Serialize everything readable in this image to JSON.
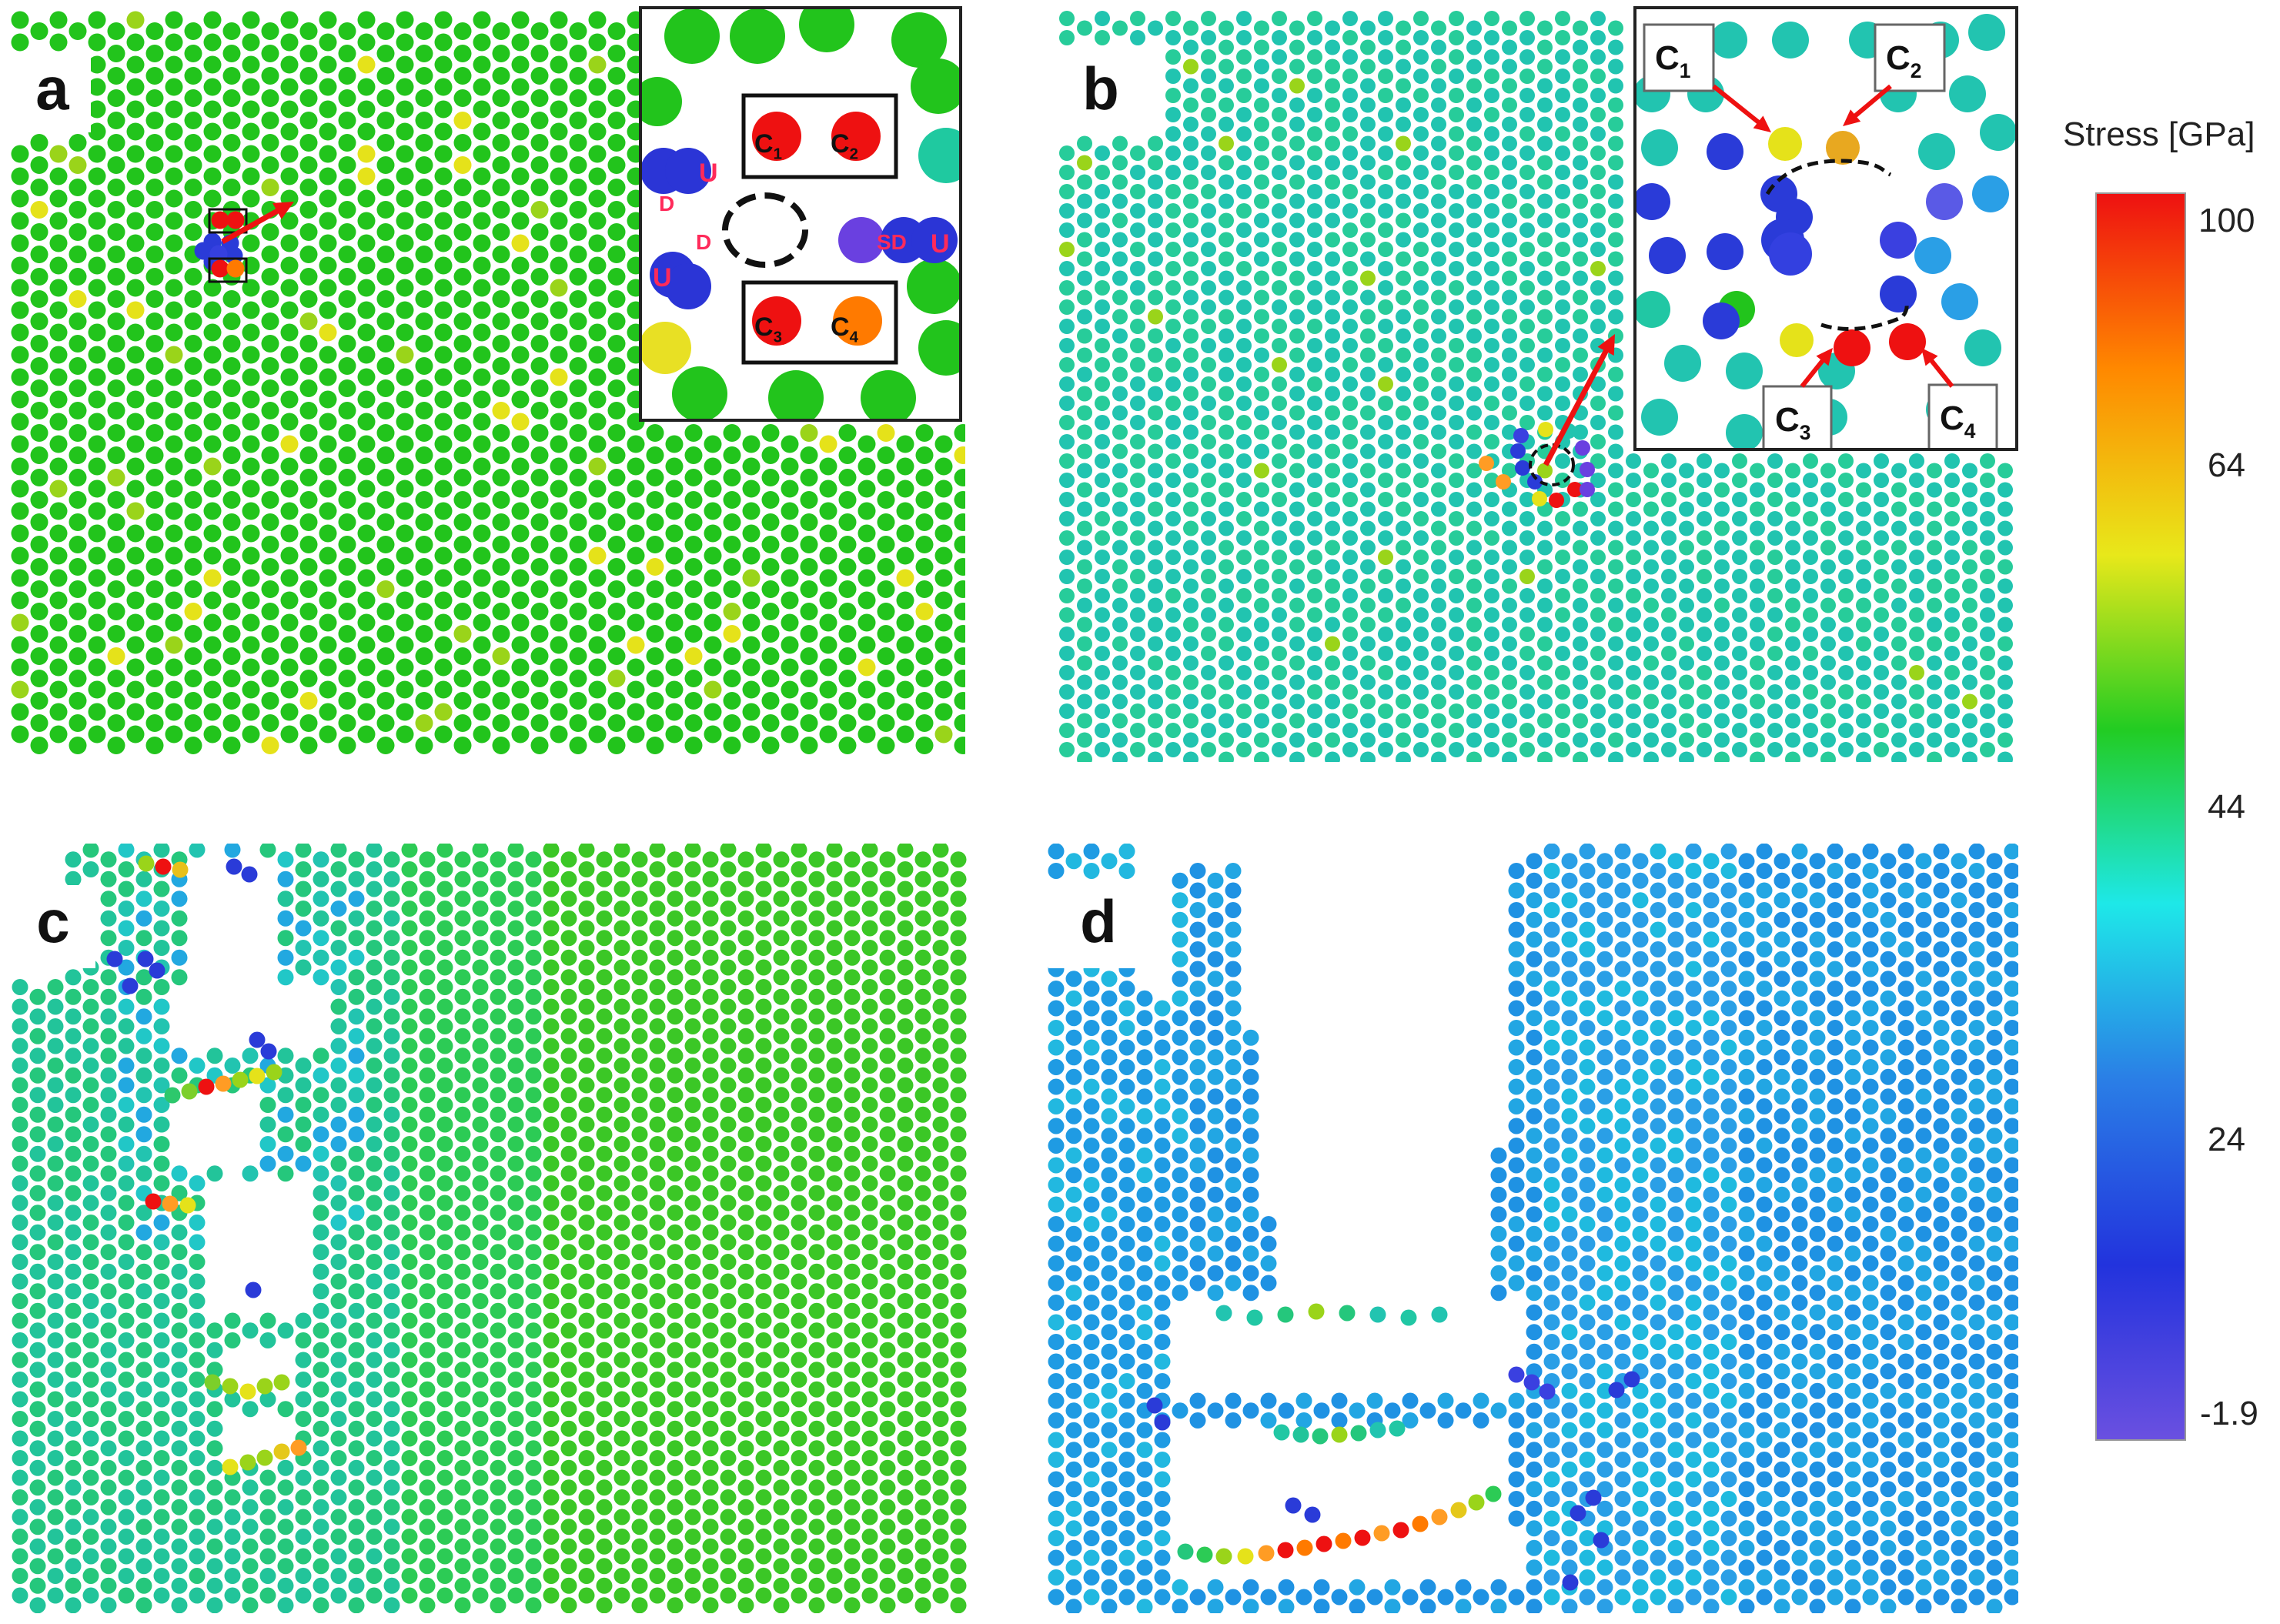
{
  "panels": {
    "a": {
      "label": "a"
    },
    "b": {
      "label": "b"
    },
    "c": {
      "label": "c"
    },
    "d": {
      "label": "d"
    }
  },
  "inset_a": {
    "labels": [
      "C1",
      "C2",
      "C3",
      "C4",
      "U",
      "U",
      "U",
      "D",
      "D",
      "SD"
    ]
  },
  "inset_b": {
    "labels": [
      "C1",
      "C2",
      "C3",
      "C4"
    ]
  },
  "colorbar": {
    "title": "Stress [GPa]",
    "ticks": [
      "100",
      "64",
      "44",
      "24",
      "-1.9"
    ],
    "colors": [
      "#ee1111",
      "#ff8800",
      "#e8e81a",
      "#22cc22",
      "#1ee8e8",
      "#2a7fe6",
      "#2233dd",
      "#6a50e0"
    ]
  },
  "atom_colors": {
    "green": "#22c41c",
    "teal": "#21c7a4",
    "blue": "#1f9be3",
    "red": "#ee1111",
    "orange": "#ff7a00",
    "yellow": "#e5e21a",
    "darkblue": "#2a3bd8"
  }
}
